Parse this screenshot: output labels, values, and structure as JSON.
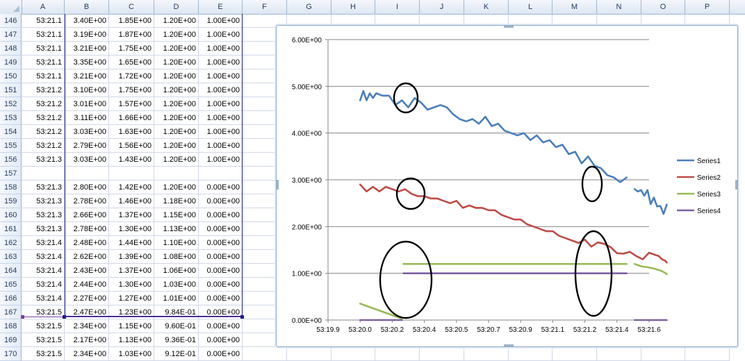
{
  "spreadsheet": {
    "columns": [
      "A",
      "B",
      "C",
      "D",
      "E",
      "F",
      "G",
      "H",
      "I",
      "J",
      "K",
      "L",
      "M",
      "N",
      "O",
      "P"
    ],
    "rows": [
      {
        "n": "146",
        "cells": [
          "53:21.1",
          "3.40E+00",
          "1.85E+00",
          "1.20E+00",
          "1.00E+00"
        ]
      },
      {
        "n": "147",
        "cells": [
          "53:21.1",
          "3.19E+00",
          "1.87E+00",
          "1.20E+00",
          "1.00E+00"
        ]
      },
      {
        "n": "148",
        "cells": [
          "53:21.1",
          "3.21E+00",
          "1.75E+00",
          "1.20E+00",
          "1.00E+00"
        ]
      },
      {
        "n": "149",
        "cells": [
          "53:21.1",
          "3.35E+00",
          "1.65E+00",
          "1.20E+00",
          "1.00E+00"
        ]
      },
      {
        "n": "150",
        "cells": [
          "53:21.1",
          "3.21E+00",
          "1.72E+00",
          "1.20E+00",
          "1.00E+00"
        ]
      },
      {
        "n": "151",
        "cells": [
          "53:21.2",
          "3.10E+00",
          "1.75E+00",
          "1.20E+00",
          "1.00E+00"
        ]
      },
      {
        "n": "152",
        "cells": [
          "53:21.2",
          "3.01E+00",
          "1.57E+00",
          "1.20E+00",
          "1.00E+00"
        ]
      },
      {
        "n": "153",
        "cells": [
          "53:21.2",
          "3.11E+00",
          "1.66E+00",
          "1.20E+00",
          "1.00E+00"
        ]
      },
      {
        "n": "154",
        "cells": [
          "53:21.2",
          "3.03E+00",
          "1.63E+00",
          "1.20E+00",
          "1.00E+00"
        ]
      },
      {
        "n": "155",
        "cells": [
          "53:21.2",
          "2.79E+00",
          "1.56E+00",
          "1.20E+00",
          "1.00E+00"
        ]
      },
      {
        "n": "156",
        "cells": [
          "53:21.3",
          "3.03E+00",
          "1.43E+00",
          "1.20E+00",
          "1.00E+00"
        ]
      },
      {
        "n": "157",
        "cells": [
          "",
          "",
          "",
          "",
          ""
        ]
      },
      {
        "n": "158",
        "cells": [
          "53:21.3",
          "2.80E+00",
          "1.42E+00",
          "1.20E+00",
          "0.00E+00"
        ]
      },
      {
        "n": "159",
        "cells": [
          "53:21.3",
          "2.78E+00",
          "1.46E+00",
          "1.18E+00",
          "0.00E+00"
        ]
      },
      {
        "n": "160",
        "cells": [
          "53:21.3",
          "2.66E+00",
          "1.37E+00",
          "1.15E+00",
          "0.00E+00"
        ]
      },
      {
        "n": "161",
        "cells": [
          "53:21.3",
          "2.78E+00",
          "1.30E+00",
          "1.13E+00",
          "0.00E+00"
        ]
      },
      {
        "n": "162",
        "cells": [
          "53:21.4",
          "2.48E+00",
          "1.44E+00",
          "1.10E+00",
          "0.00E+00"
        ]
      },
      {
        "n": "163",
        "cells": [
          "53:21.4",
          "2.62E+00",
          "1.39E+00",
          "1.08E+00",
          "0.00E+00"
        ]
      },
      {
        "n": "164",
        "cells": [
          "53:21.4",
          "2.43E+00",
          "1.37E+00",
          "1.06E+00",
          "0.00E+00"
        ]
      },
      {
        "n": "165",
        "cells": [
          "53:21.4",
          "2.44E+00",
          "1.30E+00",
          "1.03E+00",
          "0.00E+00"
        ]
      },
      {
        "n": "166",
        "cells": [
          "53:21.4",
          "2.27E+00",
          "1.27E+00",
          "1.01E+00",
          "0.00E+00"
        ]
      },
      {
        "n": "167",
        "cells": [
          "53:21.5",
          "2.47E+00",
          "1.23E+00",
          "9.84E-01",
          "0.00E+00"
        ]
      },
      {
        "n": "168",
        "cells": [
          "53:21.5",
          "2.34E+00",
          "1.15E+00",
          "9.60E-01",
          "0.00E+00"
        ]
      },
      {
        "n": "169",
        "cells": [
          "53:21.5",
          "2.17E+00",
          "1.13E+00",
          "9.36E-01",
          "0.00E+00"
        ]
      },
      {
        "n": "170",
        "cells": [
          "53:21.5",
          "2.34E+00",
          "1.03E+00",
          "9.12E-01",
          "0.00E+00"
        ]
      }
    ]
  },
  "chart_data": {
    "type": "line",
    "ytick_labels": [
      "0.00E+00",
      "1.00E+00",
      "2.00E+00",
      "3.00E+00",
      "4.00E+00",
      "5.00E+00",
      "6.00E+00"
    ],
    "xtick_labels": [
      "53:19.9",
      "53:20.0",
      "53:20.2",
      "53:20.4",
      "53:20.5",
      "53:20.7",
      "53:20.9",
      "53:21.1",
      "53:21.2",
      "53:21.4",
      "53:21.6"
    ],
    "ylim": [
      0,
      6
    ],
    "legend_position": "right",
    "grid": "horizontal",
    "series": [
      {
        "name": "Series1",
        "color": "#4a7ebb",
        "segments": [
          [
            [
              0.1,
              4.7
            ],
            [
              0.11,
              4.9
            ],
            [
              0.12,
              4.7
            ],
            [
              0.13,
              4.85
            ],
            [
              0.14,
              4.75
            ],
            [
              0.15,
              4.85
            ],
            [
              0.17,
              4.8
            ],
            [
              0.19,
              4.8
            ],
            [
              0.21,
              4.6
            ],
            [
              0.23,
              4.7
            ],
            [
              0.25,
              4.55
            ],
            [
              0.27,
              4.75
            ],
            [
              0.29,
              4.65
            ],
            [
              0.31,
              4.5
            ]
          ],
          [
            [
              0.31,
              4.5
            ],
            [
              0.33,
              4.55
            ],
            [
              0.35,
              4.6
            ],
            [
              0.37,
              4.55
            ],
            [
              0.39,
              4.4
            ],
            [
              0.41,
              4.3
            ],
            [
              0.43,
              4.25
            ],
            [
              0.45,
              4.3
            ],
            [
              0.47,
              4.2
            ],
            [
              0.49,
              4.35
            ],
            [
              0.51,
              4.15
            ],
            [
              0.53,
              4.2
            ],
            [
              0.55,
              4.05
            ],
            [
              0.57,
              4.0
            ],
            [
              0.59,
              3.95
            ],
            [
              0.61,
              4.0
            ],
            [
              0.63,
              3.85
            ],
            [
              0.65,
              3.95
            ],
            [
              0.67,
              3.8
            ],
            [
              0.69,
              3.85
            ],
            [
              0.71,
              3.7
            ],
            [
              0.73,
              3.75
            ],
            [
              0.75,
              3.55
            ],
            [
              0.77,
              3.6
            ],
            [
              0.79,
              3.35
            ],
            [
              0.81,
              3.5
            ],
            [
              0.83,
              3.3
            ],
            [
              0.85,
              3.25
            ],
            [
              0.87,
              3.1
            ],
            [
              0.89,
              3.05
            ],
            [
              0.91,
              2.95
            ],
            [
              0.93,
              3.05
            ]
          ],
          [
            [
              0.955,
              2.8
            ],
            [
              0.965,
              2.75
            ],
            [
              0.975,
              2.78
            ],
            [
              0.985,
              2.66
            ],
            [
              0.995,
              2.78
            ],
            [
              1.005,
              2.48
            ],
            [
              1.015,
              2.62
            ],
            [
              1.025,
              2.43
            ],
            [
              1.035,
              2.44
            ],
            [
              1.045,
              2.27
            ],
            [
              1.055,
              2.47
            ]
          ]
        ]
      },
      {
        "name": "Series2",
        "color": "#be4b48",
        "segments": [
          [
            [
              0.1,
              2.9
            ],
            [
              0.12,
              2.75
            ],
            [
              0.14,
              2.85
            ],
            [
              0.16,
              2.75
            ],
            [
              0.18,
              2.85
            ],
            [
              0.2,
              2.8
            ],
            [
              0.22,
              2.75
            ],
            [
              0.24,
              2.8
            ],
            [
              0.26,
              2.7
            ],
            [
              0.28,
              2.65
            ],
            [
              0.3,
              2.65
            ],
            [
              0.32,
              2.6
            ],
            [
              0.34,
              2.6
            ],
            [
              0.36,
              2.55
            ],
            [
              0.38,
              2.5
            ],
            [
              0.4,
              2.55
            ],
            [
              0.42,
              2.4
            ],
            [
              0.44,
              2.45
            ],
            [
              0.46,
              2.4
            ],
            [
              0.48,
              2.4
            ],
            [
              0.5,
              2.35
            ],
            [
              0.52,
              2.35
            ],
            [
              0.54,
              2.25
            ],
            [
              0.56,
              2.2
            ],
            [
              0.58,
              2.15
            ],
            [
              0.6,
              2.15
            ],
            [
              0.62,
              2.05
            ],
            [
              0.64,
              2.0
            ],
            [
              0.66,
              1.95
            ],
            [
              0.68,
              1.9
            ],
            [
              0.7,
              1.9
            ],
            [
              0.72,
              1.8
            ],
            [
              0.74,
              1.75
            ],
            [
              0.76,
              1.7
            ],
            [
              0.78,
              1.65
            ],
            [
              0.8,
              1.72
            ],
            [
              0.82,
              1.57
            ],
            [
              0.84,
              1.66
            ],
            [
              0.86,
              1.63
            ],
            [
              0.88,
              1.56
            ],
            [
              0.9,
              1.43
            ],
            [
              0.92,
              1.42
            ],
            [
              0.94,
              1.46
            ],
            [
              0.96,
              1.37
            ],
            [
              0.98,
              1.3
            ],
            [
              1.0,
              1.44
            ],
            [
              1.02,
              1.39
            ],
            [
              1.03,
              1.37
            ],
            [
              1.04,
              1.3
            ],
            [
              1.05,
              1.27
            ],
            [
              1.055,
              1.23
            ]
          ]
        ]
      },
      {
        "name": "Series3",
        "color": "#98b954",
        "segments": [
          [
            [
              0.1,
              0.35
            ],
            [
              0.23,
              0.03
            ]
          ],
          [
            [
              0.235,
              1.2
            ],
            [
              0.93,
              1.2
            ]
          ],
          [
            [
              0.955,
              1.2
            ],
            [
              0.975,
              1.15
            ],
            [
              0.995,
              1.13
            ],
            [
              1.015,
              1.1
            ],
            [
              1.035,
              1.06
            ],
            [
              1.05,
              1.01
            ],
            [
              1.055,
              0.98
            ]
          ]
        ]
      },
      {
        "name": "Series4",
        "color": "#7d60a0",
        "segments": [
          [
            [
              0.1,
              0.0
            ],
            [
              0.23,
              0.0
            ]
          ],
          [
            [
              0.235,
              1.0
            ],
            [
              0.93,
              1.0
            ]
          ],
          [
            [
              0.955,
              0.0
            ],
            [
              1.055,
              0.0
            ]
          ]
        ]
      }
    ],
    "annotations": "hand-drawn black circles around gaps between segments"
  }
}
